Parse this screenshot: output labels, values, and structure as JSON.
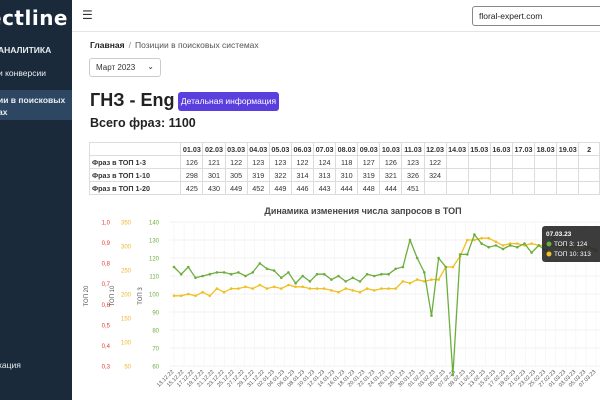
{
  "sidebar": {
    "logo": "ectline",
    "items": [
      {
        "label": "АНАЛИТИКА"
      },
      {
        "label": "и конверсии"
      },
      {
        "label": "ии в поисковых"
      },
      {
        "label": "ах"
      },
      {
        "label": "кация"
      }
    ]
  },
  "topbar": {
    "search_value": "floral-expert.com"
  },
  "breadcrumb": {
    "home": "Главная",
    "separator": "/",
    "current": "Позиции в поисковых системах"
  },
  "filter": {
    "month": "Март 2023"
  },
  "header": {
    "title": "ГНЗ - Eng",
    "detail_button": "Детальная информация",
    "total": "Всего фраз: 1100"
  },
  "table": {
    "dates": [
      "01.03",
      "02.03",
      "03.03",
      "04.03",
      "05.03",
      "06.03",
      "07.03",
      "08.03",
      "09.03",
      "10.03",
      "11.03",
      "12.03",
      "14.03",
      "15.03",
      "16.03",
      "17.03",
      "18.03",
      "19.03",
      "2"
    ],
    "rows": [
      {
        "label": "Фраз в ТОП 1-3",
        "values": [
          "126",
          "121",
          "122",
          "123",
          "123",
          "122",
          "124",
          "118",
          "127",
          "126",
          "123",
          "122",
          "",
          "",
          "",
          "",
          "",
          "",
          ""
        ]
      },
      {
        "label": "Фраз в ТОП 1-10",
        "values": [
          "298",
          "301",
          "305",
          "319",
          "322",
          "314",
          "313",
          "310",
          "319",
          "321",
          "326",
          "324",
          "",
          "",
          "",
          "",
          "",
          "",
          ""
        ]
      },
      {
        "label": "Фраз в ТОП 1-20",
        "values": [
          "425",
          "430",
          "449",
          "452",
          "449",
          "446",
          "443",
          "444",
          "448",
          "444",
          "451",
          "",
          "",
          "",
          "",
          "",
          "",
          "",
          ""
        ]
      }
    ]
  },
  "chart_data": {
    "type": "line",
    "title": "Динамика изменения числа запросов в ТОП",
    "y_axes": [
      {
        "label": "ТОП 20",
        "color": "#e0403a",
        "ticks": [
          "1,0",
          "0,9",
          "0,8",
          "0,7",
          "0,6",
          "0,5",
          "0,4",
          "0,3"
        ]
      },
      {
        "label": "ТОП 10",
        "color": "#f0b429",
        "ticks": [
          "350",
          "300",
          "250",
          "200",
          "150",
          "100",
          "50"
        ]
      },
      {
        "label": "ТОП 3",
        "color": "#6cae3e",
        "ticks": [
          "140",
          "130",
          "120",
          "110",
          "100",
          "90",
          "80",
          "70",
          "60"
        ]
      }
    ],
    "ylim": [
      60,
      140
    ],
    "x_labels": [
      "13.12.22",
      "15.12.22",
      "17.12.22",
      "19.12.22",
      "21.12.22",
      "23.12.22",
      "25.12.22",
      "27.12.22",
      "29.12.22",
      "31.12.22",
      "02.01.23",
      "04.01.23",
      "06.01.23",
      "08.01.23",
      "10.01.23",
      "12.01.23",
      "14.01.23",
      "16.01.23",
      "18.01.23",
      "20.01.23",
      "22.01.23",
      "24.01.23",
      "26.01.23",
      "28.01.23",
      "30.01.23",
      "01.02.23",
      "03.02.23",
      "05.02.23",
      "07.02.23",
      "09.02.23",
      "11.02.23",
      "13.02.23",
      "15.02.23",
      "17.02.23",
      "19.02.23",
      "21.02.23",
      "23.02.23",
      "25.02.23",
      "27.02.23",
      "01.03.23",
      "03.03.23",
      "05.03.23",
      "07.03.23"
    ],
    "series": [
      {
        "name": "ТОП 3",
        "color": "#6cae3e",
        "values": [
          115,
          111,
          115,
          109,
          110,
          111,
          112,
          112,
          111,
          112,
          110,
          112,
          117,
          114,
          113,
          109,
          112,
          106,
          110,
          107,
          111,
          111,
          108,
          110,
          107,
          109,
          107,
          111,
          110,
          111,
          111,
          114,
          115,
          130,
          120,
          112,
          88,
          120,
          115,
          55,
          122,
          122,
          133,
          128,
          126,
          127,
          125,
          127,
          126,
          128,
          123,
          127,
          124,
          131,
          127,
          126,
          123,
          124,
          126,
          124
        ]
      },
      {
        "name": "ТОП 10",
        "color": "#f0c020",
        "values": [
          99,
          99,
          100,
          99,
          101,
          99,
          103,
          101,
          103,
          103,
          104,
          103,
          105,
          103,
          104,
          103,
          105,
          104,
          104,
          103,
          103,
          103,
          102,
          101,
          103,
          102,
          101,
          103,
          102,
          103,
          103,
          103,
          107,
          106,
          108,
          107,
          108,
          108,
          115,
          115,
          121,
          130,
          130,
          131,
          131,
          129,
          127,
          128,
          128,
          127,
          128,
          127,
          127,
          127,
          126,
          127,
          126,
          128,
          126,
          125
        ]
      }
    ],
    "tooltip": {
      "date": "07.03.23",
      "lines": [
        {
          "text": "ТОП 3: 124",
          "color": "#6cae3e"
        },
        {
          "text": "ТОП 10: 313",
          "color": "#f0c020"
        }
      ]
    }
  }
}
